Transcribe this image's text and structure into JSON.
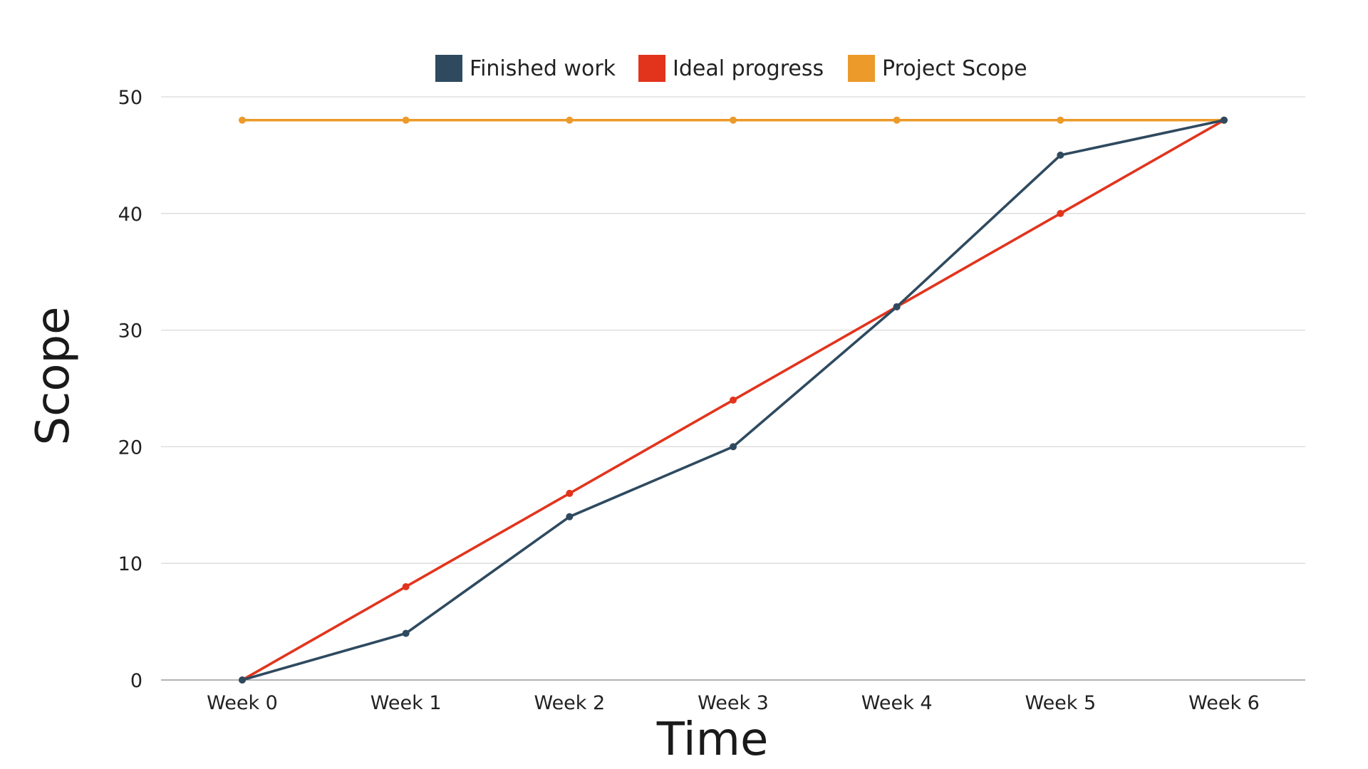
{
  "chart_data": {
    "type": "line",
    "categories": [
      "Week 0",
      "Week 1",
      "Week 2",
      "Week 3",
      "Week 4",
      "Week 5",
      "Week 6"
    ],
    "series": [
      {
        "name": "Finished work",
        "color": "#2f4a5f",
        "values": [
          0,
          4,
          14,
          20,
          32,
          45,
          48
        ]
      },
      {
        "name": "Ideal progress",
        "color": "#e2341d",
        "values": [
          0,
          8,
          16,
          24,
          32,
          40,
          48
        ]
      },
      {
        "name": "Project Scope",
        "color": "#ec9a2a",
        "values": [
          48,
          48,
          48,
          48,
          48,
          48,
          48
        ]
      }
    ],
    "xlabel": "Time",
    "ylabel": "Scope",
    "ylim": [
      0,
      50
    ],
    "yticks": [
      0,
      10,
      20,
      30,
      40,
      50
    ],
    "grid": true,
    "legend_position": "top-center",
    "gridline_color": "#d9d9d9",
    "axis_line_color": "#9a9a9a"
  }
}
